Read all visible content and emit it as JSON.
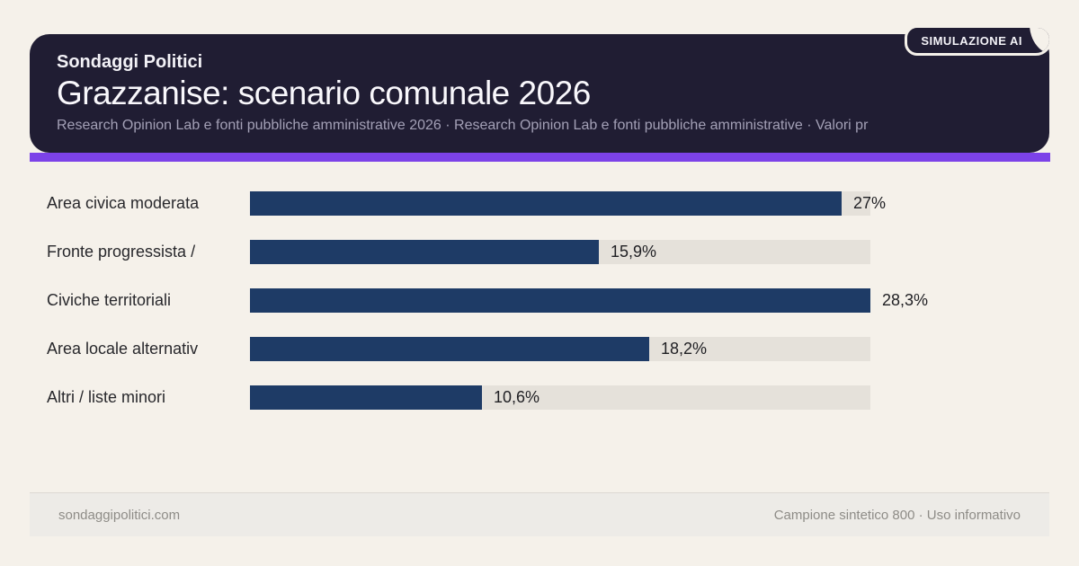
{
  "page": {
    "background_color": "#f5f1ea"
  },
  "header": {
    "brand": "Sondaggi Politici",
    "title": "Grazzanise: scenario comunale 2026",
    "subtitle": "Research Opinion Lab e fonti pubbliche amministrative 2026 · Research Opinion Lab e fonti pubbliche amministrative · Valori pr",
    "badge": "SIMULAZIONE AI",
    "card_color": "#201d33",
    "accent_color": "#7c42e8"
  },
  "chart_data": {
    "type": "bar",
    "orientation": "horizontal",
    "title": "Grazzanise: scenario comunale 2026",
    "categories": [
      "Area civica moderata",
      "Fronte progressista /",
      "Civiche territoriali",
      "Area locale alternativ",
      "Altri / liste minori"
    ],
    "values": [
      27,
      15.9,
      28.3,
      18.2,
      10.6
    ],
    "value_labels": [
      "27%",
      "15,9%",
      "28,3%",
      "18,2%",
      "10,6%"
    ],
    "max_value": 28.3,
    "unit": "%",
    "bar_color": "#1e3b66",
    "track_color": "#e5e1da",
    "grid": false,
    "legend": false
  },
  "footer": {
    "left": "sondaggipolitici.com",
    "right": "Campione sintetico 800 · Uso informativo"
  }
}
